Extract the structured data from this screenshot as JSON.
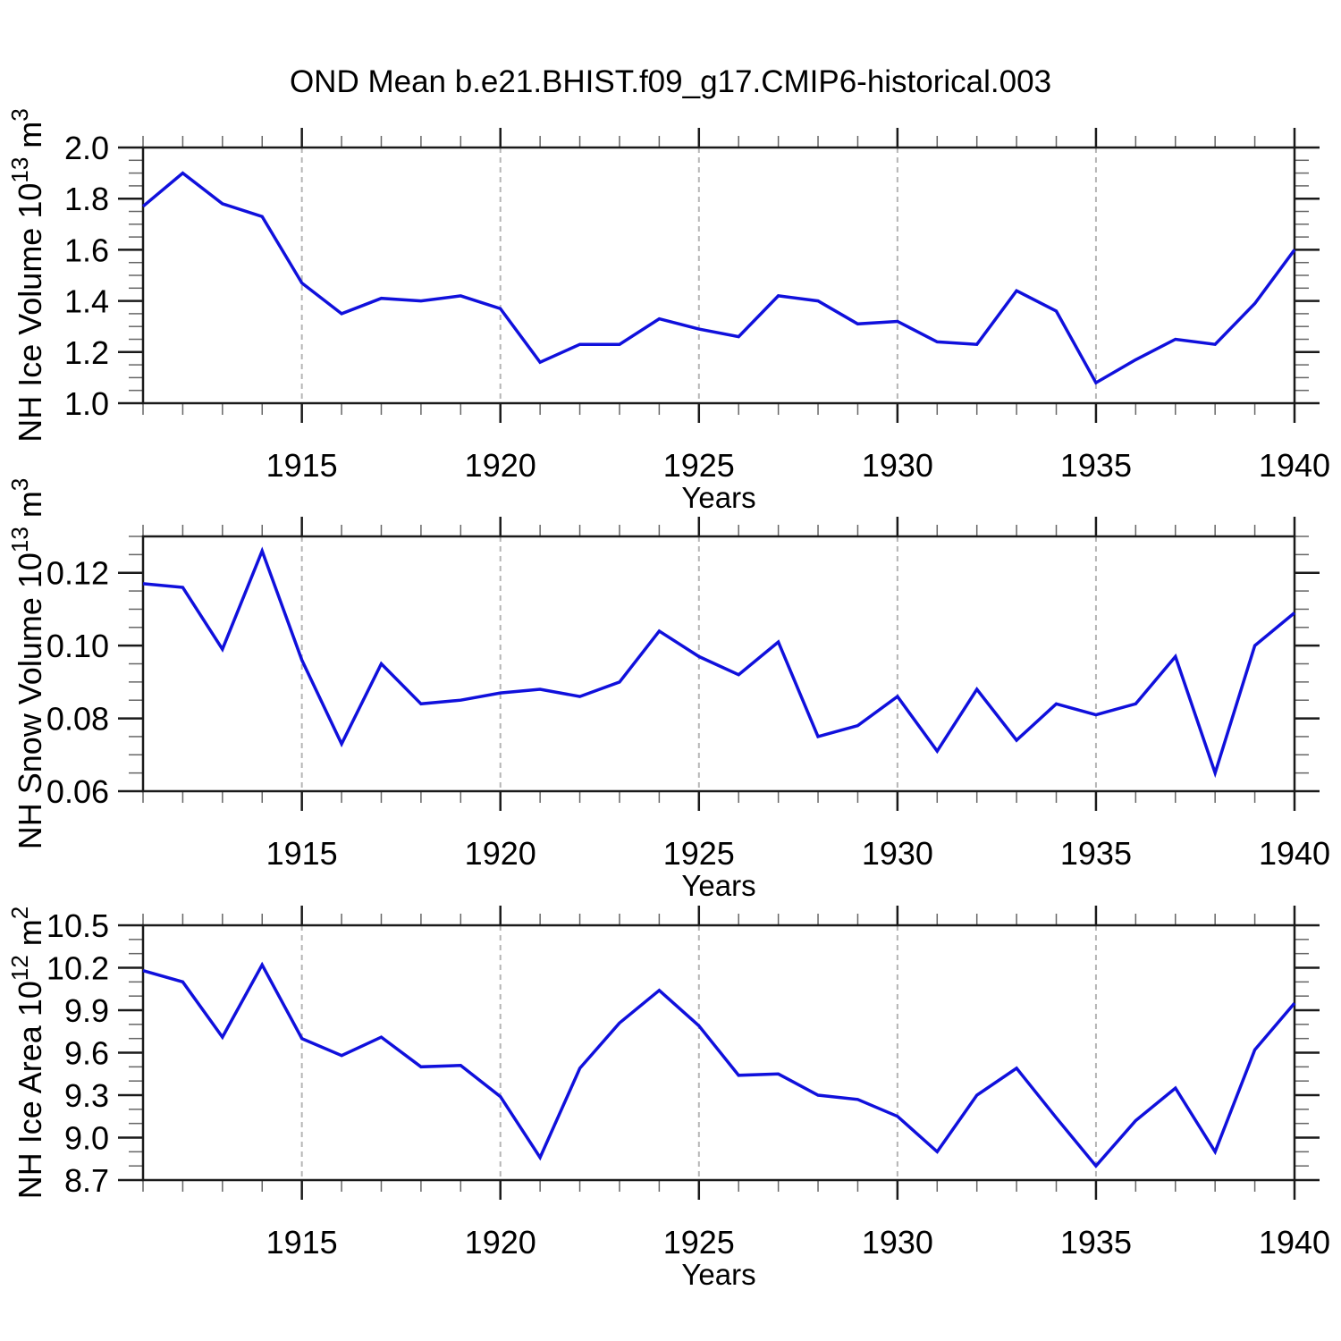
{
  "title": "OND Mean b.e21.BHIST.f09_g17.CMIP6-historical.003",
  "colors": {
    "line": "#1010dc",
    "grid": "#b5b5b5",
    "axis": "#1a1a1a",
    "minor_tick": "#666666",
    "text": "#000000",
    "background": "#ffffff"
  },
  "chart_data": [
    {
      "type": "line",
      "id": "ice-volume",
      "xlabel": "Years",
      "ylabel": "NH Ice Volume 10^13 m^3",
      "ylabel_parts": [
        {
          "t": "NH Ice Volume 10"
        },
        {
          "t": "13",
          "sup": true
        },
        {
          "t": " m"
        },
        {
          "t": "3",
          "sup": true
        }
      ],
      "x": [
        1911,
        1912,
        1913,
        1914,
        1915,
        1916,
        1917,
        1918,
        1919,
        1920,
        1921,
        1922,
        1923,
        1924,
        1925,
        1926,
        1927,
        1928,
        1929,
        1930,
        1931,
        1932,
        1933,
        1934,
        1935,
        1936,
        1937,
        1938,
        1939,
        1940
      ],
      "values": [
        1.77,
        1.9,
        1.78,
        1.73,
        1.47,
        1.35,
        1.41,
        1.4,
        1.42,
        1.37,
        1.16,
        1.23,
        1.23,
        1.33,
        1.29,
        1.26,
        1.42,
        1.4,
        1.31,
        1.32,
        1.24,
        1.23,
        1.44,
        1.36,
        1.08,
        1.17,
        1.25,
        1.23,
        1.39,
        1.6
      ],
      "ylim": [
        1.0,
        2.0
      ],
      "yticks": [
        1.0,
        1.2,
        1.4,
        1.6,
        1.8,
        2.0
      ],
      "ytick_labels": [
        "1.0",
        "1.2",
        "1.4",
        "1.6",
        "1.8",
        "2.0"
      ],
      "yminor_step": 0.05,
      "xlim": [
        1911,
        1940
      ],
      "xticks": [
        1915,
        1920,
        1925,
        1930,
        1935,
        1940
      ],
      "xtick_labels": [
        "1915",
        "1920",
        "1925",
        "1930",
        "1935",
        "1940"
      ],
      "xminor_step": 1,
      "grid_x": [
        1915,
        1920,
        1925,
        1930,
        1935
      ],
      "grid": "vertical-dashed"
    },
    {
      "type": "line",
      "id": "snow-volume",
      "xlabel": "Years",
      "ylabel": "NH Snow Volume 10^13 m^3",
      "ylabel_parts": [
        {
          "t": "NH Snow Volume 10"
        },
        {
          "t": "13",
          "sup": true
        },
        {
          "t": " m"
        },
        {
          "t": "3",
          "sup": true
        }
      ],
      "x": [
        1911,
        1912,
        1913,
        1914,
        1915,
        1916,
        1917,
        1918,
        1919,
        1920,
        1921,
        1922,
        1923,
        1924,
        1925,
        1926,
        1927,
        1928,
        1929,
        1930,
        1931,
        1932,
        1933,
        1934,
        1935,
        1936,
        1937,
        1938,
        1939,
        1940
      ],
      "values": [
        0.117,
        0.116,
        0.099,
        0.126,
        0.096,
        0.073,
        0.095,
        0.084,
        0.085,
        0.087,
        0.088,
        0.086,
        0.09,
        0.104,
        0.097,
        0.092,
        0.101,
        0.075,
        0.078,
        0.086,
        0.071,
        0.088,
        0.074,
        0.084,
        0.081,
        0.084,
        0.097,
        0.065,
        0.1,
        0.109
      ],
      "ylim": [
        0.06,
        0.13
      ],
      "yticks": [
        0.06,
        0.08,
        0.1,
        0.12
      ],
      "ytick_labels": [
        "0.06",
        "0.08",
        "0.10",
        "0.12"
      ],
      "yminor_step": 0.005,
      "xlim": [
        1911,
        1940
      ],
      "xticks": [
        1915,
        1920,
        1925,
        1930,
        1935,
        1940
      ],
      "xtick_labels": [
        "1915",
        "1920",
        "1925",
        "1930",
        "1935",
        "1940"
      ],
      "xminor_step": 1,
      "grid_x": [
        1915,
        1920,
        1925,
        1930,
        1935
      ],
      "grid": "vertical-dashed"
    },
    {
      "type": "line",
      "id": "ice-area",
      "xlabel": "Years",
      "ylabel": "NH Ice Area 10^12 m^2",
      "ylabel_parts": [
        {
          "t": "NH Ice Area 10"
        },
        {
          "t": "12",
          "sup": true
        },
        {
          "t": " m"
        },
        {
          "t": "2",
          "sup": true
        }
      ],
      "x": [
        1911,
        1912,
        1913,
        1914,
        1915,
        1916,
        1917,
        1918,
        1919,
        1920,
        1921,
        1922,
        1923,
        1924,
        1925,
        1926,
        1927,
        1928,
        1929,
        1930,
        1931,
        1932,
        1933,
        1934,
        1935,
        1936,
        1937,
        1938,
        1939,
        1940
      ],
      "values": [
        10.18,
        10.1,
        9.71,
        10.22,
        9.7,
        9.58,
        9.71,
        9.5,
        9.51,
        9.29,
        8.86,
        9.49,
        9.81,
        10.04,
        9.79,
        9.44,
        9.45,
        9.3,
        9.27,
        9.15,
        8.9,
        9.3,
        9.49,
        9.14,
        8.8,
        9.12,
        9.35,
        8.9,
        9.62,
        9.95
      ],
      "ylim": [
        8.7,
        10.5
      ],
      "yticks": [
        8.7,
        9.0,
        9.3,
        9.6,
        9.9,
        10.2,
        10.5
      ],
      "ytick_labels": [
        "8.7",
        "9.0",
        "9.3",
        "9.6",
        "9.9",
        "10.2",
        "10.5"
      ],
      "yminor_step": 0.1,
      "xlim": [
        1911,
        1940
      ],
      "xticks": [
        1915,
        1920,
        1925,
        1930,
        1935,
        1940
      ],
      "xtick_labels": [
        "1915",
        "1920",
        "1925",
        "1930",
        "1935",
        "1940"
      ],
      "xminor_step": 1,
      "grid_x": [
        1915,
        1920,
        1925,
        1930,
        1935
      ],
      "grid": "vertical-dashed"
    }
  ]
}
